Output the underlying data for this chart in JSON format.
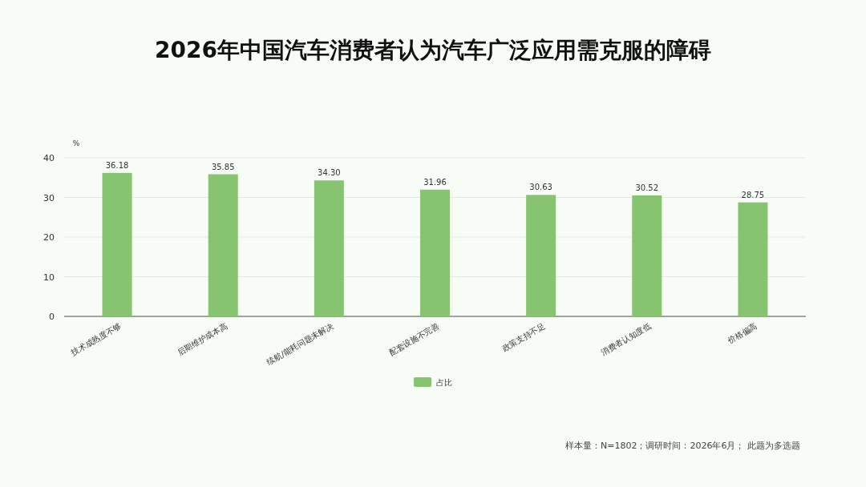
{
  "chart_data": {
    "type": "bar",
    "title": "2026年中国汽车消费者认为汽车广泛应用需克服的障碍",
    "ylabel": "%",
    "categories": [
      "技术成熟度不够",
      "后期维护成本高",
      "续航/能耗问题未解决",
      "配套设施不完善",
      "政策支持不足",
      "消费者认知度低",
      "价格偏高"
    ],
    "series": [
      {
        "name": "占比",
        "color": "#86c46f",
        "values": [
          36.18,
          35.85,
          34.3,
          31.96,
          30.63,
          30.52,
          28.75
        ]
      }
    ],
    "value_labels": [
      "36.18",
      "35.85",
      "34.30",
      "31.96",
      "30.63",
      "30.52",
      "28.75"
    ],
    "ylim": [
      0,
      40
    ],
    "yticks": [
      0,
      10,
      20,
      30,
      40
    ],
    "grid": "y",
    "legend": "bottom",
    "annotations": [
      "样本量：N=1802；调研时间：2026年6月； 此题为多选题"
    ]
  }
}
